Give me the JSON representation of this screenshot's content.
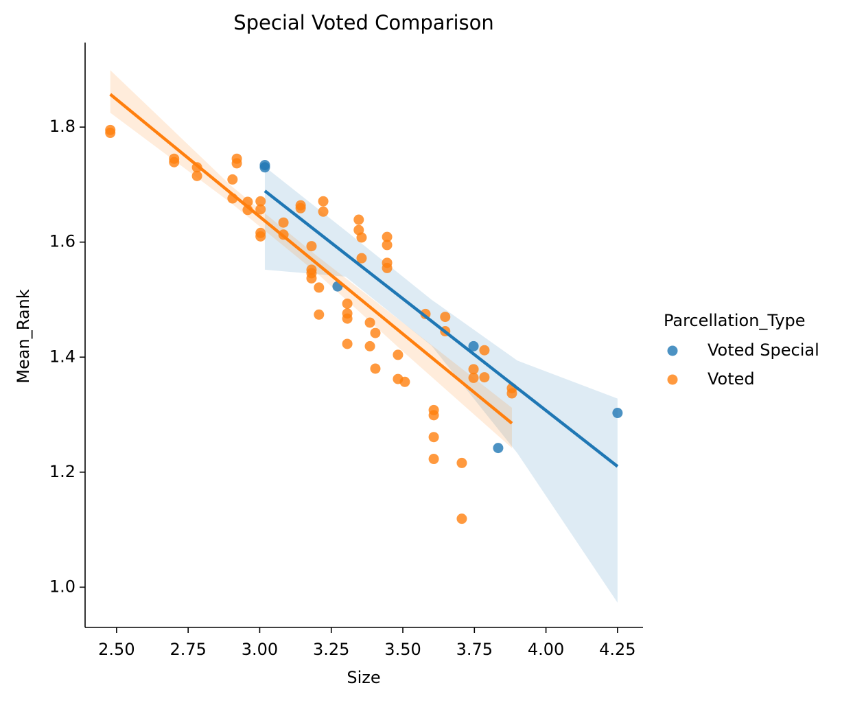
{
  "chart_data": {
    "type": "scatter",
    "title": "Special Voted Comparison",
    "x_label": "Size",
    "y_label": "Mean_Rank",
    "legend_title": "Parcellation_Type",
    "legend": "right",
    "xlim": [
      2.39,
      4.339
    ],
    "ylim": [
      0.93,
      1.947
    ],
    "xticks": [
      {
        "value": 2.5,
        "label": "2.50"
      },
      {
        "value": 2.75,
        "label": "2.75"
      },
      {
        "value": 3,
        "label": "3.00"
      },
      {
        "value": 3.25,
        "label": "3.25"
      },
      {
        "value": 3.5,
        "label": "3.50"
      },
      {
        "value": 3.75,
        "label": "3.75"
      },
      {
        "value": 4,
        "label": "4.00"
      },
      {
        "value": 4.25,
        "label": "4.25"
      }
    ],
    "yticks": [
      {
        "value": 1,
        "label": "1.0"
      },
      1.2,
      1.4,
      1.6,
      1.8
    ],
    "series": [
      {
        "name": "Voted Special",
        "color": "#1f77b4",
        "x": [
          3.018,
          3.018,
          3.272,
          3.747,
          3.833,
          4.25
        ],
        "values": [
          1.734,
          1.73,
          1.523,
          1.419,
          1.242,
          1.303
        ],
        "fit_x": [
          3.018,
          4.25
        ],
        "fit_values": [
          1.689,
          1.21
        ],
        "band_x": [
          3.018,
          3.3,
          3.6,
          3.9,
          4.25
        ],
        "band_lower": [
          1.552,
          1.54,
          1.42,
          1.233,
          0.973
        ],
        "band_upper": [
          1.731,
          1.62,
          1.5,
          1.394,
          1.328
        ]
      },
      {
        "name": "Voted",
        "color": "#ff7f0e",
        "x": [
          2.478,
          2.478,
          2.701,
          2.701,
          2.781,
          2.781,
          2.905,
          2.92,
          2.92,
          2.905,
          2.958,
          2.958,
          3.003,
          3.003,
          3.003,
          3.003,
          3.083,
          3.083,
          3.143,
          3.143,
          3.222,
          3.222,
          3.181,
          3.181,
          3.181,
          3.181,
          3.207,
          3.207,
          3.306,
          3.306,
          3.306,
          3.306,
          3.346,
          3.346,
          3.356,
          3.356,
          3.445,
          3.445,
          3.445,
          3.445,
          3.385,
          3.404,
          3.385,
          3.404,
          3.483,
          3.483,
          3.507,
          3.579,
          3.648,
          3.648,
          3.608,
          3.608,
          3.608,
          3.608,
          3.706,
          3.706,
          3.747,
          3.747,
          3.785,
          3.785,
          3.881,
          3.881
        ],
        "values": [
          1.795,
          1.79,
          1.745,
          1.739,
          1.73,
          1.715,
          1.709,
          1.745,
          1.737,
          1.676,
          1.67,
          1.656,
          1.671,
          1.657,
          1.616,
          1.61,
          1.634,
          1.613,
          1.664,
          1.659,
          1.671,
          1.653,
          1.593,
          1.552,
          1.546,
          1.537,
          1.521,
          1.474,
          1.493,
          1.476,
          1.467,
          1.423,
          1.639,
          1.621,
          1.608,
          1.572,
          1.609,
          1.595,
          1.564,
          1.555,
          1.46,
          1.442,
          1.419,
          1.38,
          1.404,
          1.362,
          1.357,
          1.475,
          1.47,
          1.445,
          1.308,
          1.299,
          1.261,
          1.223,
          1.216,
          1.119,
          1.379,
          1.364,
          1.412,
          1.365,
          1.346,
          1.337
        ],
        "fit_x": [
          2.478,
          3.881
        ],
        "fit_values": [
          1.857,
          1.285
        ],
        "band_x": [
          2.478,
          2.9,
          3.2,
          3.5,
          3.881
        ],
        "band_lower": [
          1.825,
          1.668,
          1.546,
          1.41,
          1.242
        ],
        "band_upper": [
          1.899,
          1.698,
          1.576,
          1.46,
          1.312
        ]
      }
    ]
  }
}
